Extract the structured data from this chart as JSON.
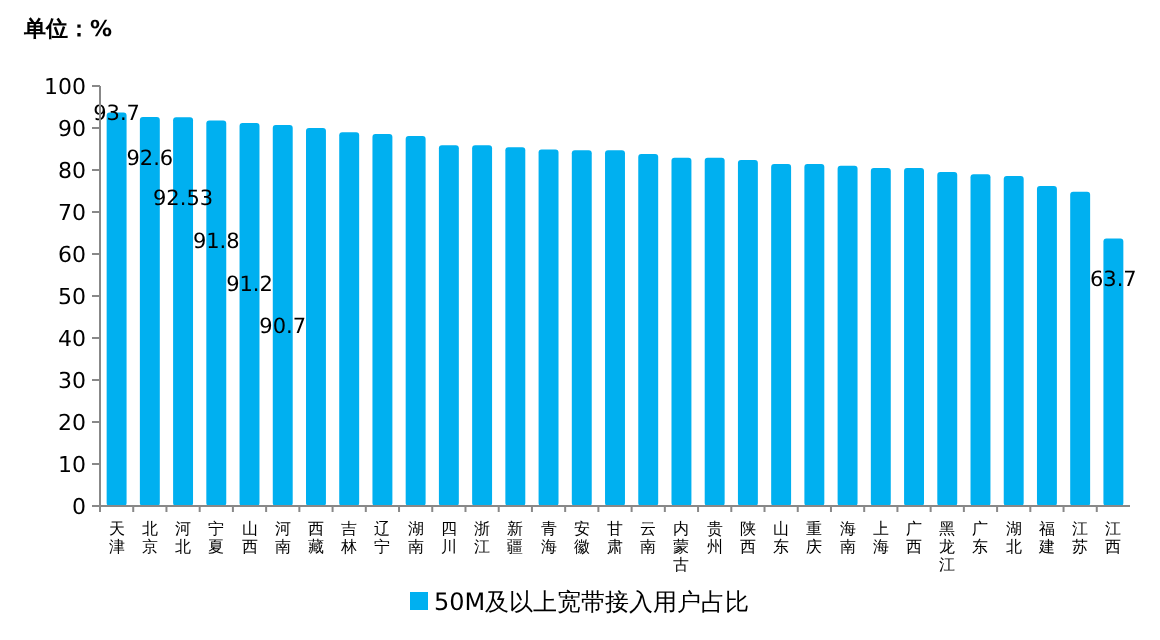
{
  "chart_data": {
    "type": "bar",
    "title": "单位：%",
    "categories": [
      "天津",
      "北京",
      "河北",
      "宁夏",
      "山西",
      "河南",
      "西藏",
      "吉林",
      "辽宁",
      "湖南",
      "四川",
      "浙江",
      "新疆",
      "青海",
      "安徽",
      "甘肃",
      "云南",
      "内蒙古",
      "贵州",
      "陕西",
      "山东",
      "重庆",
      "海南",
      "上海",
      "广西",
      "黑龙江",
      "广东",
      "湖北",
      "福建",
      "江苏",
      "江西"
    ],
    "series": [
      {
        "name": "50M及以上宽带接入用户占比",
        "color": "#00b0f0",
        "values": [
          93.7,
          92.6,
          92.53,
          91.8,
          91.2,
          90.7,
          90,
          89,
          88.6,
          88.1,
          85.9,
          85.9,
          85.4,
          84.9,
          84.7,
          84.7,
          83.8,
          82.9,
          82.9,
          82.4,
          81.4,
          81.4,
          81.0,
          80.5,
          80.5,
          79.5,
          79.0,
          78.6,
          76.2,
          74.8,
          63.7
        ],
        "value_labels": [
          "93.7",
          "92.6",
          "92.53",
          "91.8",
          "91.2",
          "90.7",
          null,
          null,
          null,
          null,
          null,
          null,
          null,
          null,
          null,
          null,
          null,
          null,
          null,
          null,
          null,
          null,
          null,
          null,
          null,
          null,
          null,
          null,
          null,
          null,
          "63.7"
        ]
      }
    ],
    "ylim": [
      0,
      100
    ],
    "yticks": [
      0,
      10,
      20,
      30,
      40,
      50,
      60,
      70,
      80,
      90,
      100
    ],
    "grid": false,
    "legend": "bottom"
  }
}
